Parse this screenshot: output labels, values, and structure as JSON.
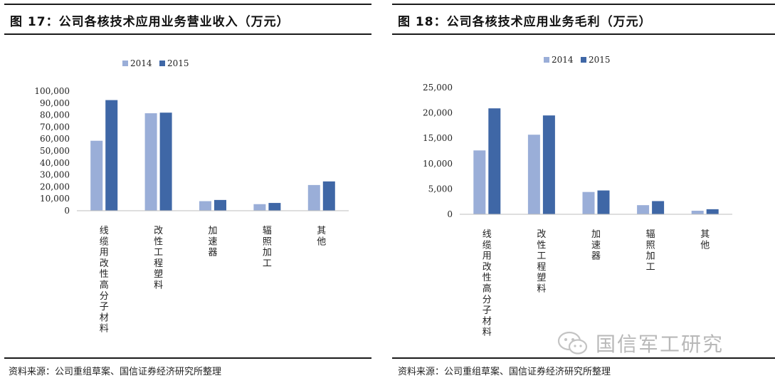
{
  "chart_data": [
    {
      "type": "bar",
      "title": "图 17：公司各核技术应用业务营业收入（万元）",
      "categories": [
        "线缆用改性高分子材料",
        "改性工程塑料",
        "加速器",
        "辐照加工",
        "其他"
      ],
      "series": [
        {
          "name": "2014",
          "values": [
            58500,
            81500,
            8000,
            5500,
            21500
          ],
          "color": "#9aaed8"
        },
        {
          "name": "2015",
          "values": [
            92500,
            82000,
            9000,
            6500,
            24500
          ],
          "color": "#3f67a6"
        }
      ],
      "yticks": [
        "0",
        "10,000",
        "20,000",
        "30,000",
        "40,000",
        "50,000",
        "60,000",
        "70,000",
        "80,000",
        "90,000",
        "100,000"
      ],
      "ylim": [
        0,
        100000
      ],
      "legend_position": "top",
      "xlabel": "",
      "ylabel": ""
    },
    {
      "type": "bar",
      "title": "图 18：公司各核技术应用业务毛利（万元）",
      "categories": [
        "线缆用改性高分子材料",
        "改性工程塑料",
        "加速器",
        "辐照加工",
        "其他"
      ],
      "series": [
        {
          "name": "2014",
          "values": [
            12600,
            15700,
            4400,
            1800,
            700
          ],
          "color": "#9aaed8"
        },
        {
          "name": "2015",
          "values": [
            20900,
            19500,
            4700,
            2600,
            1000
          ],
          "color": "#3f67a6"
        }
      ],
      "yticks": [
        "0",
        "5,000",
        "10,000",
        "15,000",
        "20,000",
        "25,000"
      ],
      "ylim": [
        0,
        25000
      ],
      "legend_position": "top",
      "xlabel": "",
      "ylabel": ""
    }
  ],
  "panels": [
    {
      "title": "图 17：公司各核技术应用业务营业收入（万元）",
      "source": "资料来源：公司重组草案、国信证券经济研究所整理"
    },
    {
      "title": "图 18：公司各核技术应用业务毛利（万元）",
      "source": "资料来源：公司重组草案、国信证券经济研究所整理"
    }
  ],
  "watermark": {
    "text": "国信军工研究",
    "icon": "wechat-icon"
  }
}
